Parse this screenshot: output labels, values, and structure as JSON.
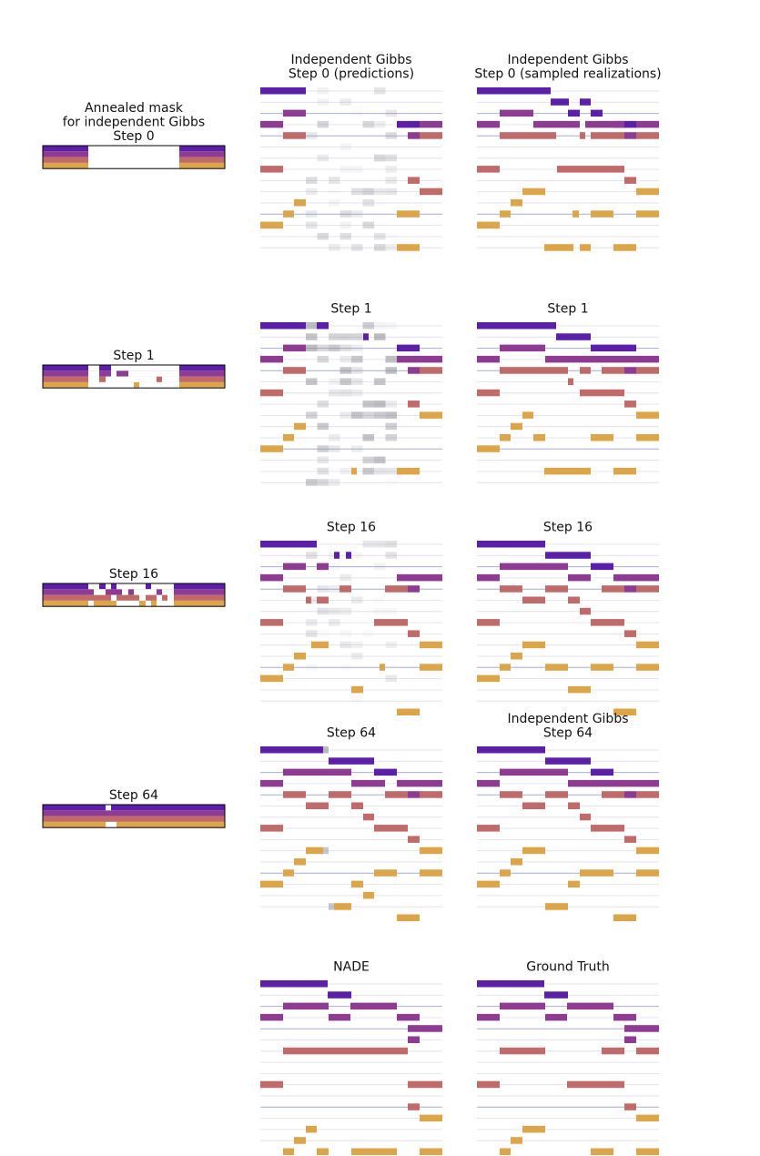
{
  "colors": {
    "voice1": "#5b1fa8",
    "voice2": "#8e3b93",
    "voice3": "#c06a6a",
    "voice4": "#dda54a",
    "uncertain": "#8e8e98",
    "gridline": "#dedee8",
    "gridline_accent": "#a9acd6"
  },
  "rows": [
    {
      "mask": {
        "title": [
          "Annealed mask",
          "for independent Gibbs",
          "Step 0"
        ],
        "state": "step0"
      },
      "left": {
        "title": [
          "Independent Gibbs",
          "Step 0 (predictions)"
        ],
        "state": "pred0"
      },
      "right": {
        "title": [
          "Independent Gibbs",
          "Step 0 (sampled realizations)"
        ],
        "state": "samp0"
      }
    },
    {
      "mask": {
        "title": [
          "Step 1"
        ],
        "state": "step1"
      },
      "left": {
        "title": [
          "Step 1"
        ],
        "state": "pred1"
      },
      "right": {
        "title": [
          "Step 1"
        ],
        "state": "samp1"
      }
    },
    {
      "mask": {
        "title": [
          "Step 16"
        ],
        "state": "step16"
      },
      "left": {
        "title": [
          "Step 16"
        ],
        "state": "pred16"
      },
      "right": {
        "title": [
          "Step 16"
        ],
        "state": "samp16"
      }
    },
    {
      "mask": {
        "title": [
          "Step 64"
        ],
        "state": "step64"
      },
      "left": {
        "title": [
          "Step 64"
        ],
        "state": "pred64"
      },
      "right": {
        "title": [
          "Independent Gibbs",
          "Step 64"
        ],
        "state": "samp64"
      }
    },
    {
      "mask": null,
      "left": {
        "title": [
          "NADE"
        ],
        "state": "nade"
      },
      "right": {
        "title": [
          "Ground Truth"
        ],
        "state": "truth"
      }
    }
  ]
}
